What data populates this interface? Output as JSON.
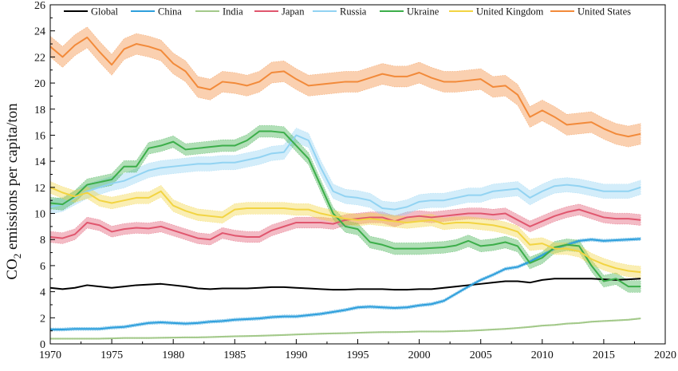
{
  "chart_data": {
    "type": "line",
    "title": "",
    "xlabel": "",
    "ylabel_main": "CO",
    "ylabel_sub": "2",
    "ylabel_rest": " emissions per capita/ton",
    "xlim": [
      1970,
      2020
    ],
    "ylim": [
      0,
      26
    ],
    "xticks": [
      1970,
      1975,
      1980,
      1985,
      1990,
      1995,
      2000,
      2005,
      2010,
      2015,
      2020
    ],
    "yticks": [
      0,
      2,
      4,
      6,
      8,
      10,
      12,
      14,
      16,
      18,
      20,
      22,
      24,
      26
    ],
    "legend_position": "top",
    "x": [
      1970,
      1971,
      1972,
      1973,
      1974,
      1975,
      1976,
      1977,
      1978,
      1979,
      1980,
      1981,
      1982,
      1983,
      1984,
      1985,
      1986,
      1987,
      1988,
      1989,
      1990,
      1991,
      1992,
      1993,
      1994,
      1995,
      1996,
      1997,
      1998,
      1999,
      2000,
      2001,
      2002,
      2003,
      2004,
      2005,
      2006,
      2007,
      2008,
      2009,
      2010,
      2011,
      2012,
      2013,
      2014,
      2015,
      2016,
      2017,
      2018
    ],
    "series": [
      {
        "name": "Global",
        "color": "#000000",
        "band": 0,
        "values": [
          4.3,
          4.2,
          4.3,
          4.5,
          4.4,
          4.3,
          4.4,
          4.5,
          4.55,
          4.6,
          4.5,
          4.4,
          4.25,
          4.2,
          4.25,
          4.25,
          4.25,
          4.3,
          4.35,
          4.35,
          4.3,
          4.25,
          4.2,
          4.15,
          4.15,
          4.2,
          4.2,
          4.2,
          4.15,
          4.15,
          4.2,
          4.2,
          4.3,
          4.4,
          4.5,
          4.6,
          4.7,
          4.8,
          4.8,
          4.7,
          4.9,
          5.0,
          5.0,
          5.0,
          5.0,
          4.95,
          4.9,
          4.95,
          5.0
        ]
      },
      {
        "name": "China",
        "color": "#2e9fdc",
        "band": 0.12,
        "values": [
          1.1,
          1.1,
          1.15,
          1.15,
          1.15,
          1.25,
          1.3,
          1.45,
          1.6,
          1.65,
          1.6,
          1.55,
          1.6,
          1.7,
          1.75,
          1.85,
          1.9,
          1.95,
          2.05,
          2.1,
          2.1,
          2.2,
          2.3,
          2.45,
          2.6,
          2.8,
          2.85,
          2.8,
          2.75,
          2.8,
          2.95,
          3.05,
          3.3,
          3.85,
          4.4,
          4.9,
          5.3,
          5.75,
          5.9,
          6.3,
          6.8,
          7.3,
          7.6,
          7.9,
          8.0,
          7.9,
          7.95,
          8.0,
          8.05
        ]
      },
      {
        "name": "India",
        "color": "#a3c98a",
        "band": 0.05,
        "values": [
          0.4,
          0.4,
          0.4,
          0.4,
          0.4,
          0.42,
          0.45,
          0.45,
          0.45,
          0.47,
          0.48,
          0.5,
          0.5,
          0.52,
          0.55,
          0.58,
          0.6,
          0.62,
          0.65,
          0.68,
          0.72,
          0.75,
          0.78,
          0.8,
          0.82,
          0.85,
          0.88,
          0.9,
          0.9,
          0.92,
          0.95,
          0.95,
          0.95,
          0.98,
          1.0,
          1.05,
          1.1,
          1.15,
          1.22,
          1.3,
          1.4,
          1.45,
          1.55,
          1.6,
          1.7,
          1.75,
          1.8,
          1.85,
          1.95
        ]
      },
      {
        "name": "Japan",
        "color": "#e0566e",
        "band": 0.42,
        "values": [
          8.2,
          8.1,
          8.4,
          9.3,
          9.1,
          8.6,
          8.8,
          8.9,
          8.85,
          9.0,
          8.7,
          8.4,
          8.1,
          8.0,
          8.5,
          8.3,
          8.2,
          8.2,
          8.7,
          9.0,
          9.3,
          9.3,
          9.3,
          9.2,
          9.5,
          9.6,
          9.7,
          9.7,
          9.4,
          9.7,
          9.8,
          9.7,
          9.8,
          9.9,
          10.0,
          10.0,
          9.9,
          10.0,
          9.5,
          9.0,
          9.4,
          9.8,
          10.1,
          10.3,
          10.0,
          9.7,
          9.6,
          9.6,
          9.5
        ]
      },
      {
        "name": "Russia",
        "color": "#92d3f2",
        "band": 0.55,
        "values": [
          10.5,
          10.7,
          11.2,
          11.7,
          12.0,
          12.3,
          12.5,
          12.9,
          13.3,
          13.5,
          13.6,
          13.7,
          13.8,
          13.8,
          13.9,
          13.9,
          14.1,
          14.3,
          14.6,
          14.7,
          16.0,
          15.6,
          13.5,
          11.7,
          11.3,
          11.2,
          11.0,
          10.4,
          10.3,
          10.5,
          10.9,
          11.0,
          11.0,
          11.2,
          11.4,
          11.4,
          11.7,
          11.8,
          11.9,
          11.2,
          11.7,
          12.1,
          12.2,
          12.1,
          11.9,
          11.7,
          11.7,
          11.7,
          12.0
        ]
      },
      {
        "name": "Ukraine",
        "color": "#3cae4a",
        "band": 0.45,
        "values": [
          10.8,
          10.7,
          11.3,
          12.2,
          12.4,
          12.6,
          13.6,
          13.6,
          15.0,
          15.2,
          15.5,
          14.9,
          15.0,
          15.1,
          15.2,
          15.2,
          15.6,
          16.3,
          16.3,
          16.2,
          15.2,
          14.2,
          12.1,
          10.0,
          9.0,
          8.8,
          7.8,
          7.6,
          7.3,
          7.3,
          7.3,
          7.35,
          7.4,
          7.55,
          7.9,
          7.5,
          7.6,
          7.8,
          7.5,
          6.2,
          6.6,
          7.4,
          7.6,
          7.5,
          6.0,
          4.8,
          5.0,
          4.4,
          4.4
        ]
      },
      {
        "name": "United Kingdom",
        "color": "#f2d442",
        "band": 0.45,
        "values": [
          12.0,
          11.6,
          11.3,
          11.6,
          11.0,
          10.8,
          11.0,
          11.2,
          11.2,
          11.7,
          10.6,
          10.2,
          9.9,
          9.8,
          9.7,
          10.3,
          10.4,
          10.4,
          10.4,
          10.4,
          10.3,
          10.3,
          10.0,
          9.8,
          9.6,
          9.5,
          9.6,
          9.5,
          9.4,
          9.3,
          9.4,
          9.5,
          9.2,
          9.3,
          9.3,
          9.2,
          9.1,
          8.9,
          8.6,
          7.6,
          7.7,
          7.3,
          7.3,
          7.1,
          6.5,
          6.1,
          5.8,
          5.6,
          5.5
        ]
      },
      {
        "name": "United States",
        "color": "#f28a3a",
        "band": 0.8,
        "values": [
          22.8,
          22.0,
          22.9,
          23.5,
          22.4,
          21.4,
          22.6,
          23.0,
          22.8,
          22.5,
          21.5,
          20.9,
          19.7,
          19.5,
          20.1,
          20.0,
          19.8,
          20.1,
          20.8,
          20.9,
          20.3,
          19.8,
          19.9,
          20.0,
          20.1,
          20.1,
          20.4,
          20.7,
          20.5,
          20.5,
          20.8,
          20.4,
          20.1,
          20.1,
          20.2,
          20.3,
          19.7,
          19.8,
          19.1,
          17.4,
          17.9,
          17.4,
          16.8,
          16.9,
          17.0,
          16.5,
          16.1,
          15.9,
          16.1
        ]
      }
    ]
  }
}
